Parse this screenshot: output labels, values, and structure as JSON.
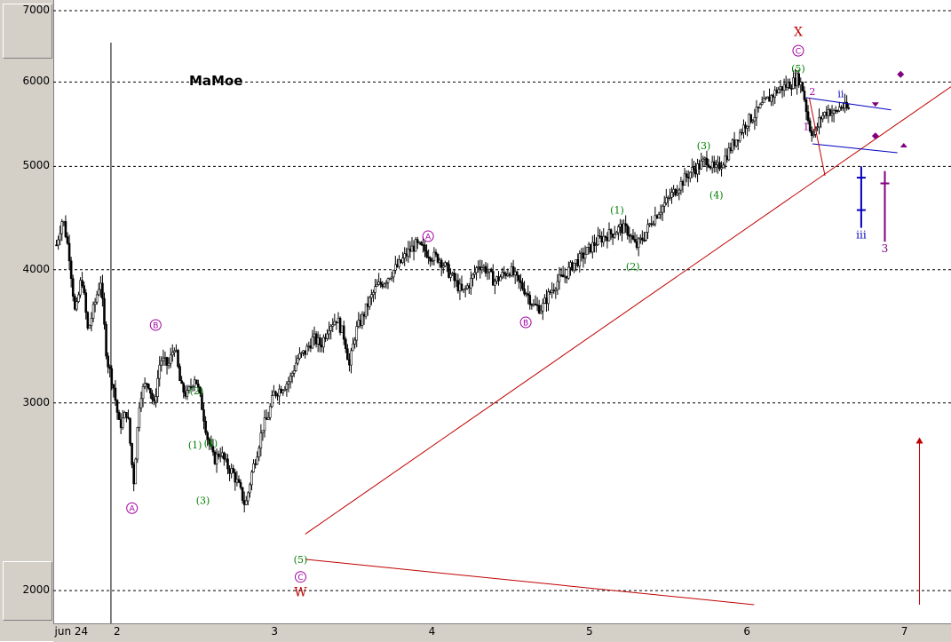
{
  "watermark": "MaMoe",
  "colors": {
    "candles": "#000000",
    "grid": "#000000",
    "channel": "#c00000",
    "primary_wave": "#a000a0",
    "minor_wave": "#008000",
    "major_wave": "#c00000",
    "sub_channel": "#0000c0",
    "target": "#800080"
  },
  "chart_data": {
    "type": "candlestick",
    "title": "",
    "xlabel": "",
    "ylabel": "",
    "y_scale": "log",
    "ylim": [
      1940,
      7000
    ],
    "xlim": [
      1.6,
      7.3
    ],
    "grid": "horizontal dashed",
    "y_ticks": [
      7000,
      6000,
      5000,
      4000,
      3000,
      2000
    ],
    "x_ticks": [
      {
        "label": "jun 24",
        "x": 1.62
      },
      {
        "label": "2",
        "x": 2
      },
      {
        "label": "3",
        "x": 3
      },
      {
        "label": "4",
        "x": 4
      },
      {
        "label": "5",
        "x": 5
      },
      {
        "label": "6",
        "x": 6
      },
      {
        "label": "7",
        "x": 7
      }
    ],
    "price_path": [
      [
        1.62,
        4220
      ],
      [
        1.66,
        4480
      ],
      [
        1.7,
        4150
      ],
      [
        1.74,
        3620
      ],
      [
        1.78,
        3950
      ],
      [
        1.82,
        3500
      ],
      [
        1.86,
        3700
      ],
      [
        1.9,
        3920
      ],
      [
        1.94,
        3300
      ],
      [
        1.98,
        3120
      ],
      [
        2.02,
        2850
      ],
      [
        2.07,
        2950
      ],
      [
        2.11,
        2520
      ],
      [
        2.15,
        3050
      ],
      [
        2.2,
        3150
      ],
      [
        2.24,
        2980
      ],
      [
        2.28,
        3300
      ],
      [
        2.33,
        3250
      ],
      [
        2.37,
        3400
      ],
      [
        2.41,
        3100
      ],
      [
        2.45,
        3050
      ],
      [
        2.5,
        3180
      ],
      [
        2.54,
        3000
      ],
      [
        2.58,
        2780
      ],
      [
        2.62,
        2650
      ],
      [
        2.66,
        2700
      ],
      [
        2.7,
        2620
      ],
      [
        2.74,
        2580
      ],
      [
        2.78,
        2500
      ],
      [
        2.82,
        2400
      ],
      [
        2.86,
        2580
      ],
      [
        2.9,
        2720
      ],
      [
        2.93,
        2850
      ],
      [
        2.96,
        2900
      ],
      [
        3.0,
        3060
      ],
      [
        3.05,
        3100
      ],
      [
        3.1,
        3150
      ],
      [
        3.15,
        3300
      ],
      [
        3.2,
        3350
      ],
      [
        3.25,
        3450
      ],
      [
        3.3,
        3400
      ],
      [
        3.35,
        3550
      ],
      [
        3.4,
        3600
      ],
      [
        3.45,
        3450
      ],
      [
        3.48,
        3250
      ],
      [
        3.52,
        3500
      ],
      [
        3.56,
        3600
      ],
      [
        3.6,
        3720
      ],
      [
        3.65,
        3850
      ],
      [
        3.7,
        3900
      ],
      [
        3.75,
        3980
      ],
      [
        3.8,
        4050
      ],
      [
        3.85,
        4150
      ],
      [
        3.9,
        4220
      ],
      [
        3.95,
        4180
      ],
      [
        4.0,
        4120
      ],
      [
        4.05,
        4100
      ],
      [
        4.1,
        4000
      ],
      [
        4.15,
        3900
      ],
      [
        4.2,
        3800
      ],
      [
        4.25,
        3900
      ],
      [
        4.3,
        4050
      ],
      [
        4.35,
        4000
      ],
      [
        4.4,
        3900
      ],
      [
        4.45,
        3950
      ],
      [
        4.5,
        4000
      ],
      [
        4.55,
        3900
      ],
      [
        4.6,
        3820
      ],
      [
        4.65,
        3700
      ],
      [
        4.7,
        3680
      ],
      [
        4.75,
        3800
      ],
      [
        4.8,
        3900
      ],
      [
        4.85,
        3950
      ],
      [
        4.9,
        4050
      ],
      [
        4.95,
        4100
      ],
      [
        5.0,
        4180
      ],
      [
        5.05,
        4250
      ],
      [
        5.1,
        4300
      ],
      [
        5.15,
        4330
      ],
      [
        5.2,
        4380
      ],
      [
        5.25,
        4350
      ],
      [
        5.3,
        4200
      ],
      [
        5.35,
        4300
      ],
      [
        5.4,
        4450
      ],
      [
        5.45,
        4550
      ],
      [
        5.5,
        4650
      ],
      [
        5.55,
        4750
      ],
      [
        5.6,
        4850
      ],
      [
        5.65,
        4950
      ],
      [
        5.7,
        5000
      ],
      [
        5.75,
        5080
      ],
      [
        5.8,
        4950
      ],
      [
        5.85,
        5050
      ],
      [
        5.9,
        5200
      ],
      [
        5.95,
        5350
      ],
      [
        6.0,
        5500
      ],
      [
        6.05,
        5580
      ],
      [
        6.1,
        5700
      ],
      [
        6.15,
        5800
      ],
      [
        6.2,
        5900
      ],
      [
        6.25,
        5950
      ],
      [
        6.3,
        6000
      ],
      [
        6.33,
        6060
      ],
      [
        6.36,
        5900
      ],
      [
        6.4,
        5450
      ],
      [
        6.43,
        5350
      ],
      [
        6.47,
        5550
      ],
      [
        6.52,
        5650
      ],
      [
        6.56,
        5600
      ],
      [
        6.6,
        5700
      ],
      [
        6.65,
        5650
      ]
    ],
    "trendlines": [
      {
        "from": [
          3.2,
          2260
        ],
        "to": [
          7.3,
          5940
        ]
      },
      {
        "from": [
          3.2,
          2140
        ],
        "to": [
          6.05,
          1940
        ]
      },
      {
        "from": [
          6.38,
          5800
        ],
        "to": [
          6.92,
          5650
        ]
      },
      {
        "from": [
          6.42,
          5250
        ],
        "to": [
          6.96,
          5150
        ]
      },
      {
        "from": [
          6.4,
          5800
        ],
        "to": [
          6.5,
          4900
        ]
      }
    ],
    "projections": [
      {
        "x": 6.73,
        "low": 4380,
        "high": 5000,
        "ticks": [
          4550,
          4880
        ],
        "label": "iii"
      },
      {
        "x": 6.88,
        "low": 4250,
        "high": 4950,
        "ticks": [
          4820
        ],
        "label": "3"
      }
    ],
    "wave_labels": [
      {
        "text": "A",
        "x": 2.1,
        "y": 2390,
        "style": "circled",
        "group": "primary"
      },
      {
        "text": "B",
        "x": 2.25,
        "y": 3550,
        "style": "circled",
        "group": "primary"
      },
      {
        "text": "C",
        "x": 3.17,
        "y": 2060,
        "style": "circled",
        "group": "primary"
      },
      {
        "text": "W",
        "x": 3.17,
        "y": 1990,
        "style": "plain",
        "group": "major"
      },
      {
        "text": "(1)",
        "x": 2.5,
        "y": 2740,
        "style": "plain",
        "group": "minor"
      },
      {
        "text": "(2)",
        "x": 2.51,
        "y": 3080,
        "style": "plain",
        "group": "minor"
      },
      {
        "text": "(3)",
        "x": 2.55,
        "y": 2430,
        "style": "plain",
        "group": "minor"
      },
      {
        "text": "(4)",
        "x": 2.6,
        "y": 2750,
        "style": "plain",
        "group": "minor"
      },
      {
        "text": "(5)",
        "x": 3.17,
        "y": 2140,
        "style": "plain",
        "group": "minor"
      },
      {
        "text": "A",
        "x": 3.98,
        "y": 4300,
        "style": "circled",
        "group": "primary"
      },
      {
        "text": "B",
        "x": 4.6,
        "y": 3570,
        "style": "circled",
        "group": "primary"
      },
      {
        "text": "(1)",
        "x": 5.18,
        "y": 4550,
        "style": "plain",
        "group": "minor"
      },
      {
        "text": "(2)",
        "x": 5.28,
        "y": 4030,
        "style": "plain",
        "group": "minor"
      },
      {
        "text": "(3)",
        "x": 5.73,
        "y": 5230,
        "style": "plain",
        "group": "minor"
      },
      {
        "text": "(4)",
        "x": 5.81,
        "y": 4700,
        "style": "plain",
        "group": "minor"
      },
      {
        "text": "(5)",
        "x": 6.33,
        "y": 6180,
        "style": "plain",
        "group": "minor"
      },
      {
        "text": "C",
        "x": 6.33,
        "y": 6420,
        "style": "circled",
        "group": "primary"
      },
      {
        "text": "X",
        "x": 6.33,
        "y": 6680,
        "style": "plain",
        "group": "major"
      },
      {
        "text": "1",
        "x": 6.38,
        "y": 5450,
        "style": "plain",
        "group": "primary"
      },
      {
        "text": "2",
        "x": 6.42,
        "y": 5880,
        "style": "plain",
        "group": "primary"
      },
      {
        "text": "ii",
        "x": 6.6,
        "y": 5850,
        "style": "plain",
        "group": "sub"
      }
    ],
    "markers": [
      {
        "x": 6.82,
        "y": 5720,
        "shape": "triangle-down"
      },
      {
        "x": 6.98,
        "y": 6100,
        "shape": "diamond"
      },
      {
        "x": 6.82,
        "y": 5340,
        "shape": "diamond"
      },
      {
        "x": 7.0,
        "y": 5230,
        "shape": "triangle-up"
      }
    ],
    "arrow": {
      "x": 7.1,
      "y_from": 1940,
      "y_to": 2780
    }
  }
}
